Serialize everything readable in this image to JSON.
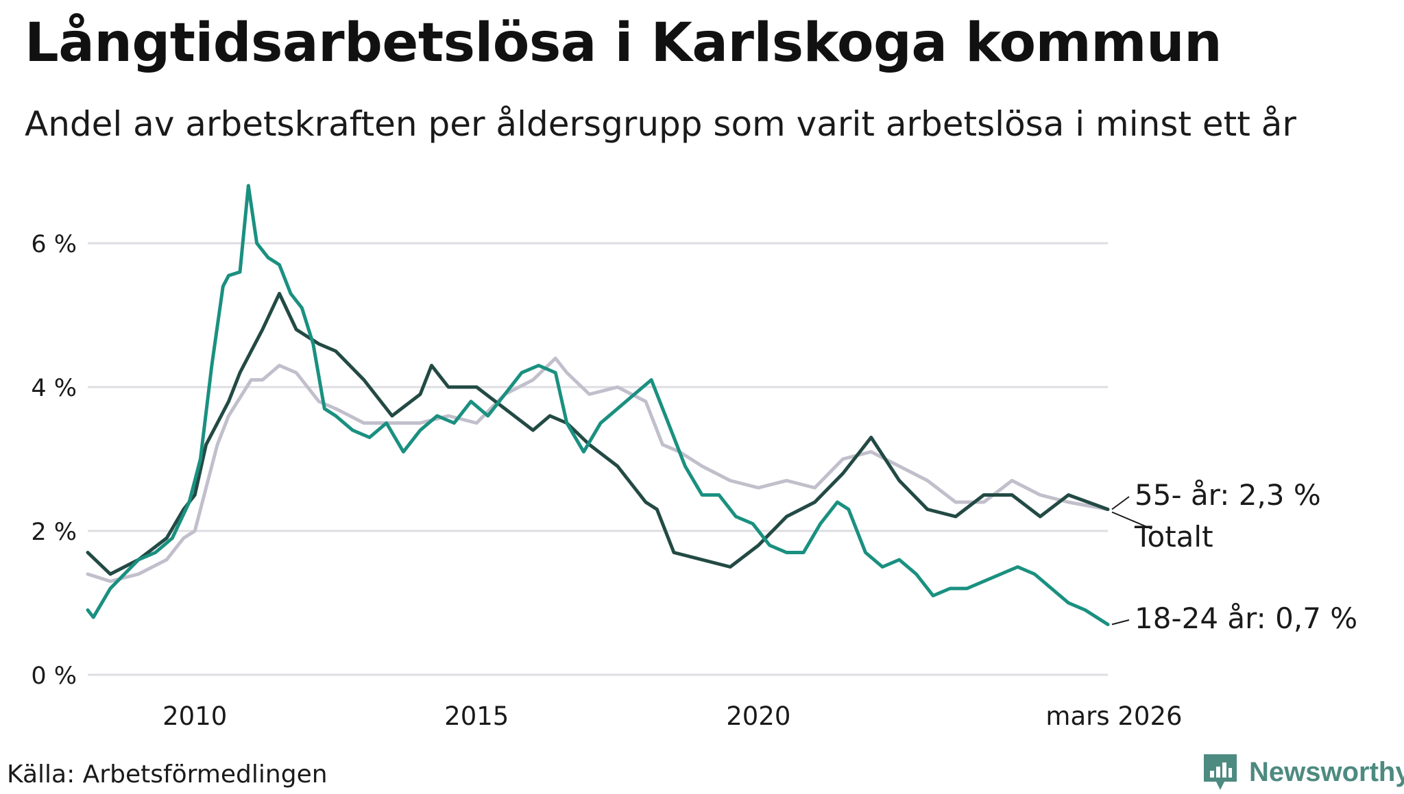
{
  "title": "Långtidsarbetslösa i Karlskoga kommun",
  "subtitle": "Andel av arbetskraften per åldersgrupp som varit arbetslösa i minst ett år",
  "source": "Källa: Arbetsförmedlingen",
  "brand": "Newsworthy",
  "colors": {
    "youth": "#1a9080",
    "total": "#234a44",
    "senior": "#c2bfcc",
    "grid": "#dedde3",
    "brand": "#4d8a80"
  },
  "chart_data": {
    "type": "line",
    "title": "Långtidsarbetslösa i Karlskoga kommun",
    "xlabel": "",
    "ylabel": "",
    "xlim": [
      2008.1,
      2026.2
    ],
    "ylim": [
      0,
      7
    ],
    "y_ticks": [
      {
        "value": 0,
        "label": "0 %"
      },
      {
        "value": 2,
        "label": "2 %"
      },
      {
        "value": 4,
        "label": "4 %"
      },
      {
        "value": 6,
        "label": "6 %"
      }
    ],
    "x_ticks": [
      {
        "value": 2010,
        "label": "2010"
      },
      {
        "value": 2015,
        "label": "2015"
      },
      {
        "value": 2020,
        "label": "2020"
      },
      {
        "value": 2026.2,
        "label": "mars 2026"
      }
    ],
    "grid": true,
    "series": [
      {
        "name": "55- år",
        "end_label": "55- år: 2,3 %",
        "color_key": "senior",
        "x": [
          2008.1,
          2008.5,
          2009.0,
          2009.5,
          2009.8,
          2010.0,
          2010.2,
          2010.4,
          2010.6,
          2011.0,
          2011.2,
          2011.5,
          2011.8,
          2012.2,
          2012.5,
          2013.0,
          2013.5,
          2014.0,
          2014.5,
          2015.0,
          2015.5,
          2016.0,
          2016.4,
          2016.6,
          2017.0,
          2017.5,
          2018.0,
          2018.3,
          2018.6,
          2019.0,
          2019.5,
          2020.0,
          2020.5,
          2021.0,
          2021.5,
          2022.0,
          2022.5,
          2023.0,
          2023.5,
          2024.0,
          2024.5,
          2025.0,
          2025.5,
          2026.2
        ],
        "y": [
          1.4,
          1.3,
          1.4,
          1.6,
          1.9,
          2.0,
          2.6,
          3.2,
          3.6,
          4.1,
          4.1,
          4.3,
          4.2,
          3.8,
          3.7,
          3.5,
          3.5,
          3.5,
          3.6,
          3.5,
          3.9,
          4.1,
          4.4,
          4.2,
          3.9,
          4.0,
          3.8,
          3.2,
          3.1,
          2.9,
          2.7,
          2.6,
          2.7,
          2.6,
          3.0,
          3.1,
          2.9,
          2.7,
          2.4,
          2.4,
          2.7,
          2.5,
          2.4,
          2.3
        ]
      },
      {
        "name": "Totalt",
        "end_label": "Totalt",
        "color_key": "total",
        "x": [
          2008.1,
          2008.5,
          2009.0,
          2009.5,
          2009.8,
          2010.0,
          2010.2,
          2010.4,
          2010.6,
          2010.8,
          2011.0,
          2011.2,
          2011.5,
          2011.8,
          2012.2,
          2012.5,
          2013.0,
          2013.5,
          2014.0,
          2014.2,
          2014.5,
          2015.0,
          2015.5,
          2016.0,
          2016.3,
          2016.6,
          2017.0,
          2017.5,
          2018.0,
          2018.2,
          2018.5,
          2019.0,
          2019.5,
          2020.0,
          2020.5,
          2021.0,
          2021.5,
          2021.8,
          2022.0,
          2022.5,
          2023.0,
          2023.5,
          2024.0,
          2024.5,
          2025.0,
          2025.5,
          2026.2
        ],
        "y": [
          1.7,
          1.4,
          1.6,
          1.9,
          2.3,
          2.5,
          3.2,
          3.5,
          3.8,
          4.2,
          4.5,
          4.8,
          5.3,
          4.8,
          4.6,
          4.5,
          4.1,
          3.6,
          3.9,
          4.3,
          4.0,
          4.0,
          3.7,
          3.4,
          3.6,
          3.5,
          3.2,
          2.9,
          2.4,
          2.3,
          1.7,
          1.6,
          1.5,
          1.8,
          2.2,
          2.4,
          2.8,
          3.1,
          3.3,
          2.7,
          2.3,
          2.2,
          2.5,
          2.5,
          2.2,
          2.5,
          2.3
        ]
      },
      {
        "name": "18-24 år",
        "end_label": "18-24 år: 0,7 %",
        "color_key": "youth",
        "x": [
          2008.1,
          2008.2,
          2008.5,
          2009.0,
          2009.3,
          2009.6,
          2009.9,
          2010.1,
          2010.3,
          2010.5,
          2010.6,
          2010.8,
          2010.95,
          2011.1,
          2011.3,
          2011.5,
          2011.7,
          2011.9,
          2012.1,
          2012.3,
          2012.5,
          2012.8,
          2013.1,
          2013.4,
          2013.7,
          2014.0,
          2014.3,
          2014.6,
          2014.9,
          2015.2,
          2015.5,
          2015.8,
          2016.1,
          2016.4,
          2016.6,
          2016.9,
          2017.2,
          2017.5,
          2017.8,
          2018.1,
          2018.4,
          2018.7,
          2019.0,
          2019.3,
          2019.6,
          2019.9,
          2020.2,
          2020.5,
          2020.8,
          2021.1,
          2021.4,
          2021.6,
          2021.9,
          2022.2,
          2022.5,
          2022.8,
          2023.1,
          2023.4,
          2023.7,
          2024.0,
          2024.3,
          2024.6,
          2024.9,
          2025.2,
          2025.5,
          2025.8,
          2026.2
        ],
        "y": [
          0.9,
          0.8,
          1.2,
          1.6,
          1.7,
          1.9,
          2.4,
          3.0,
          4.3,
          5.4,
          5.55,
          5.6,
          6.8,
          6.0,
          5.8,
          5.7,
          5.3,
          5.1,
          4.6,
          3.7,
          3.6,
          3.4,
          3.3,
          3.5,
          3.1,
          3.4,
          3.6,
          3.5,
          3.8,
          3.6,
          3.9,
          4.2,
          4.3,
          4.2,
          3.5,
          3.1,
          3.5,
          3.7,
          3.9,
          4.1,
          3.5,
          2.9,
          2.5,
          2.5,
          2.2,
          2.1,
          1.8,
          1.7,
          1.7,
          2.1,
          2.4,
          2.3,
          1.7,
          1.5,
          1.6,
          1.4,
          1.1,
          1.2,
          1.2,
          1.3,
          1.4,
          1.5,
          1.4,
          1.2,
          1.0,
          0.9,
          0.7
        ]
      }
    ]
  }
}
